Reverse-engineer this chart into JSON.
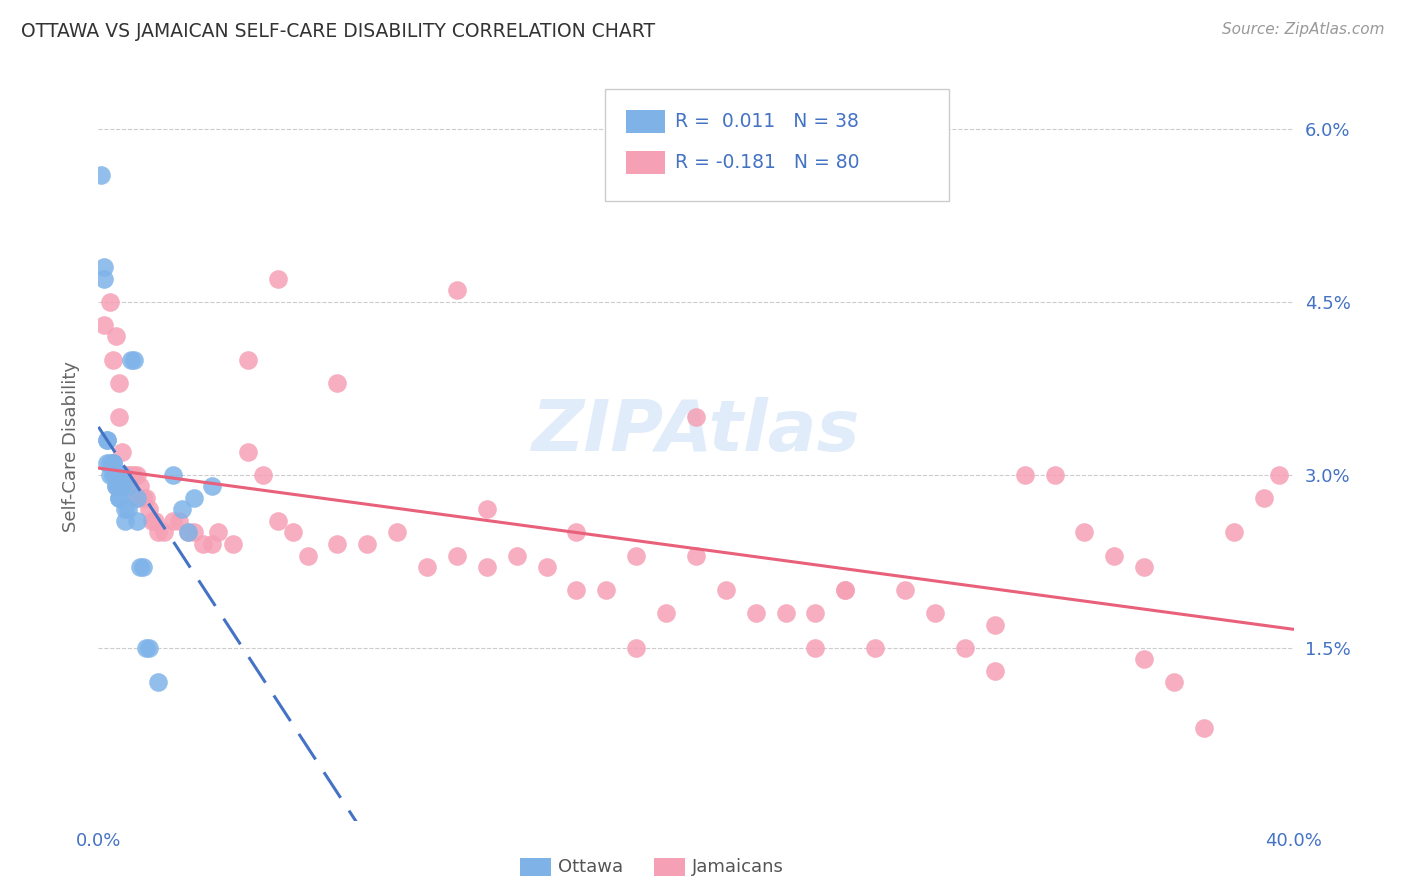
{
  "title": "OTTAWA VS JAMAICAN SELF-CARE DISABILITY CORRELATION CHART",
  "source": "Source: ZipAtlas.com",
  "ylabel": "Self-Care Disability",
  "xlim": [
    0.0,
    0.4
  ],
  "ylim": [
    0.0,
    0.065
  ],
  "background_color": "#ffffff",
  "grid_color": "#cccccc",
  "ottawa_color": "#7fb3e8",
  "jamaican_color": "#f5a0b5",
  "ottawa_line_color": "#4472c4",
  "jamaican_line_color": "#e8607a",
  "watermark": "ZIPAtlas",
  "ottawa_x": [
    0.001,
    0.002,
    0.002,
    0.003,
    0.003,
    0.003,
    0.004,
    0.004,
    0.005,
    0.005,
    0.005,
    0.006,
    0.006,
    0.006,
    0.007,
    0.007,
    0.007,
    0.007,
    0.008,
    0.008,
    0.009,
    0.009,
    0.01,
    0.01,
    0.011,
    0.012,
    0.013,
    0.013,
    0.014,
    0.015,
    0.016,
    0.017,
    0.02,
    0.025,
    0.028,
    0.03,
    0.032,
    0.038
  ],
  "ottawa_y": [
    0.056,
    0.048,
    0.047,
    0.033,
    0.033,
    0.031,
    0.031,
    0.03,
    0.031,
    0.031,
    0.03,
    0.03,
    0.029,
    0.029,
    0.03,
    0.029,
    0.028,
    0.028,
    0.03,
    0.029,
    0.027,
    0.026,
    0.029,
    0.027,
    0.04,
    0.04,
    0.028,
    0.026,
    0.022,
    0.022,
    0.015,
    0.015,
    0.012,
    0.03,
    0.027,
    0.025,
    0.028,
    0.029
  ],
  "jamaican_x": [
    0.002,
    0.004,
    0.005,
    0.006,
    0.007,
    0.007,
    0.008,
    0.009,
    0.01,
    0.01,
    0.011,
    0.012,
    0.013,
    0.013,
    0.014,
    0.015,
    0.016,
    0.017,
    0.018,
    0.019,
    0.02,
    0.022,
    0.025,
    0.027,
    0.03,
    0.032,
    0.035,
    0.038,
    0.04,
    0.045,
    0.05,
    0.055,
    0.06,
    0.065,
    0.07,
    0.08,
    0.09,
    0.1,
    0.11,
    0.12,
    0.13,
    0.14,
    0.15,
    0.16,
    0.17,
    0.18,
    0.19,
    0.2,
    0.21,
    0.22,
    0.23,
    0.24,
    0.25,
    0.26,
    0.27,
    0.28,
    0.29,
    0.3,
    0.31,
    0.32,
    0.33,
    0.34,
    0.35,
    0.36,
    0.37,
    0.38,
    0.39,
    0.395,
    0.06,
    0.12,
    0.2,
    0.24,
    0.05,
    0.08,
    0.13,
    0.16,
    0.35,
    0.3,
    0.25,
    0.18
  ],
  "jamaican_y": [
    0.043,
    0.045,
    0.04,
    0.042,
    0.038,
    0.035,
    0.032,
    0.03,
    0.03,
    0.029,
    0.03,
    0.03,
    0.03,
    0.028,
    0.029,
    0.028,
    0.028,
    0.027,
    0.026,
    0.026,
    0.025,
    0.025,
    0.026,
    0.026,
    0.025,
    0.025,
    0.024,
    0.024,
    0.025,
    0.024,
    0.032,
    0.03,
    0.026,
    0.025,
    0.023,
    0.024,
    0.024,
    0.025,
    0.022,
    0.023,
    0.022,
    0.023,
    0.022,
    0.025,
    0.02,
    0.023,
    0.018,
    0.023,
    0.02,
    0.018,
    0.018,
    0.015,
    0.02,
    0.015,
    0.02,
    0.018,
    0.015,
    0.013,
    0.03,
    0.03,
    0.025,
    0.023,
    0.022,
    0.012,
    0.008,
    0.025,
    0.028,
    0.03,
    0.047,
    0.046,
    0.035,
    0.018,
    0.04,
    0.038,
    0.027,
    0.02,
    0.014,
    0.017,
    0.02,
    0.015
  ]
}
